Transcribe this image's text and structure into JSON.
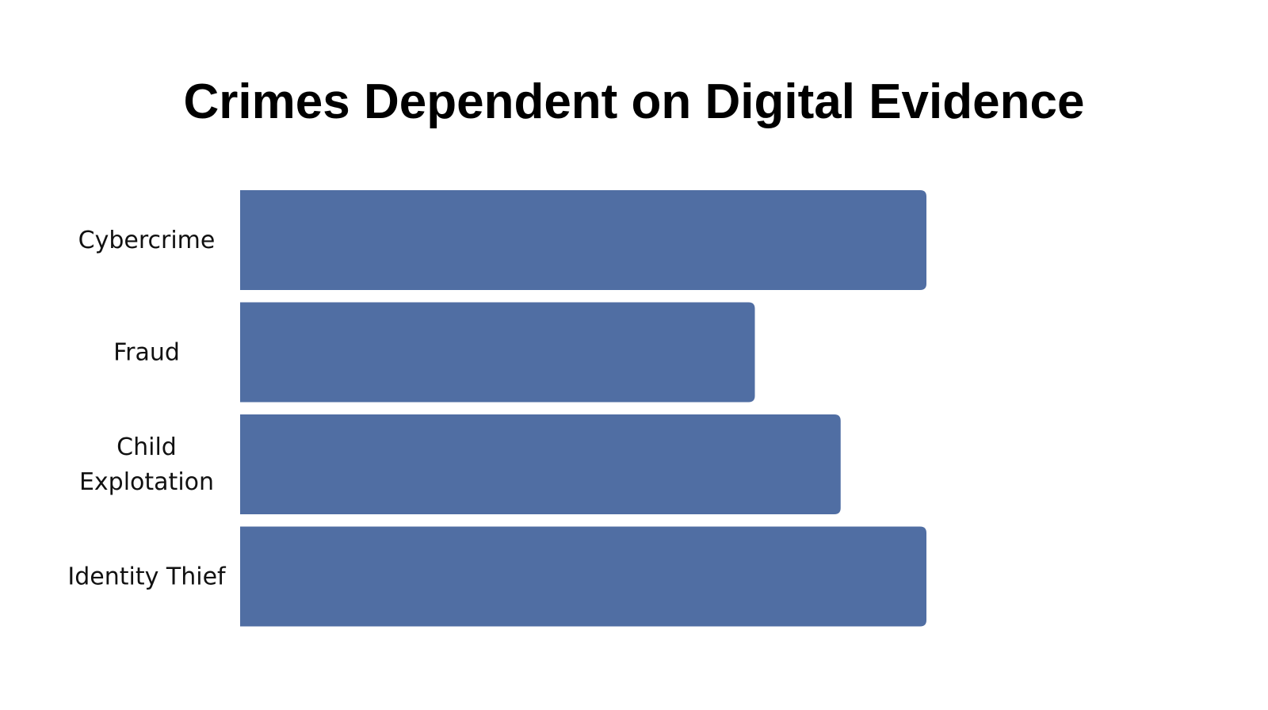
{
  "chart_data": {
    "type": "bar",
    "orientation": "horizontal",
    "title": "Crimes Dependent on Digital Evidence",
    "categories": [
      "Cybercrime",
      "Fraud",
      "Child Explotation",
      "Identity Thief"
    ],
    "category_lines": [
      [
        "Cybercrime"
      ],
      [
        "Fraud"
      ],
      [
        "Child",
        "Explotation"
      ],
      [
        "Identity Thief"
      ]
    ],
    "values": [
      80,
      60,
      70,
      80
    ],
    "xlim": [
      0,
      80
    ],
    "xlabel": "",
    "ylabel": "",
    "grid": false,
    "legend": "none",
    "bar_color": "#506ea3"
  }
}
